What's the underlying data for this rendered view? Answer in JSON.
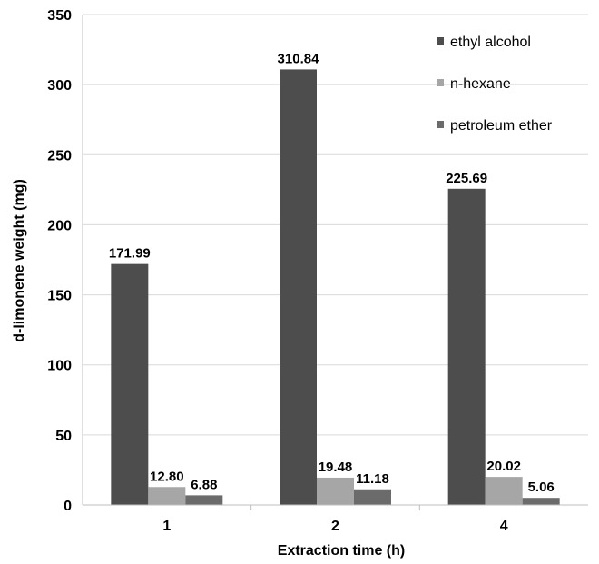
{
  "chart_data": {
    "type": "bar",
    "title": "",
    "xlabel": "Extraction time (h)",
    "ylabel": "d-limonene weight (mg)",
    "categories": [
      "1",
      "2",
      "4"
    ],
    "ylim": [
      0,
      350
    ],
    "yticks": [
      0,
      50,
      100,
      150,
      200,
      250,
      300,
      350
    ],
    "grid": true,
    "legend_position": "top-right",
    "series": [
      {
        "name": "ethyl alcohol",
        "values": [
          171.99,
          310.84,
          225.69
        ],
        "labels": [
          "171.99",
          "310.84",
          "225.69"
        ],
        "color": "#4d4d4d"
      },
      {
        "name": "n-hexane",
        "values": [
          12.8,
          19.48,
          20.02
        ],
        "labels": [
          "12.80",
          "19.48",
          "20.02"
        ],
        "color": "#a6a6a6"
      },
      {
        "name": "petroleum ether",
        "values": [
          6.88,
          11.18,
          5.06
        ],
        "labels": [
          "6.88",
          "11.18",
          "5.06"
        ],
        "color": "#6b6b6b"
      }
    ]
  }
}
